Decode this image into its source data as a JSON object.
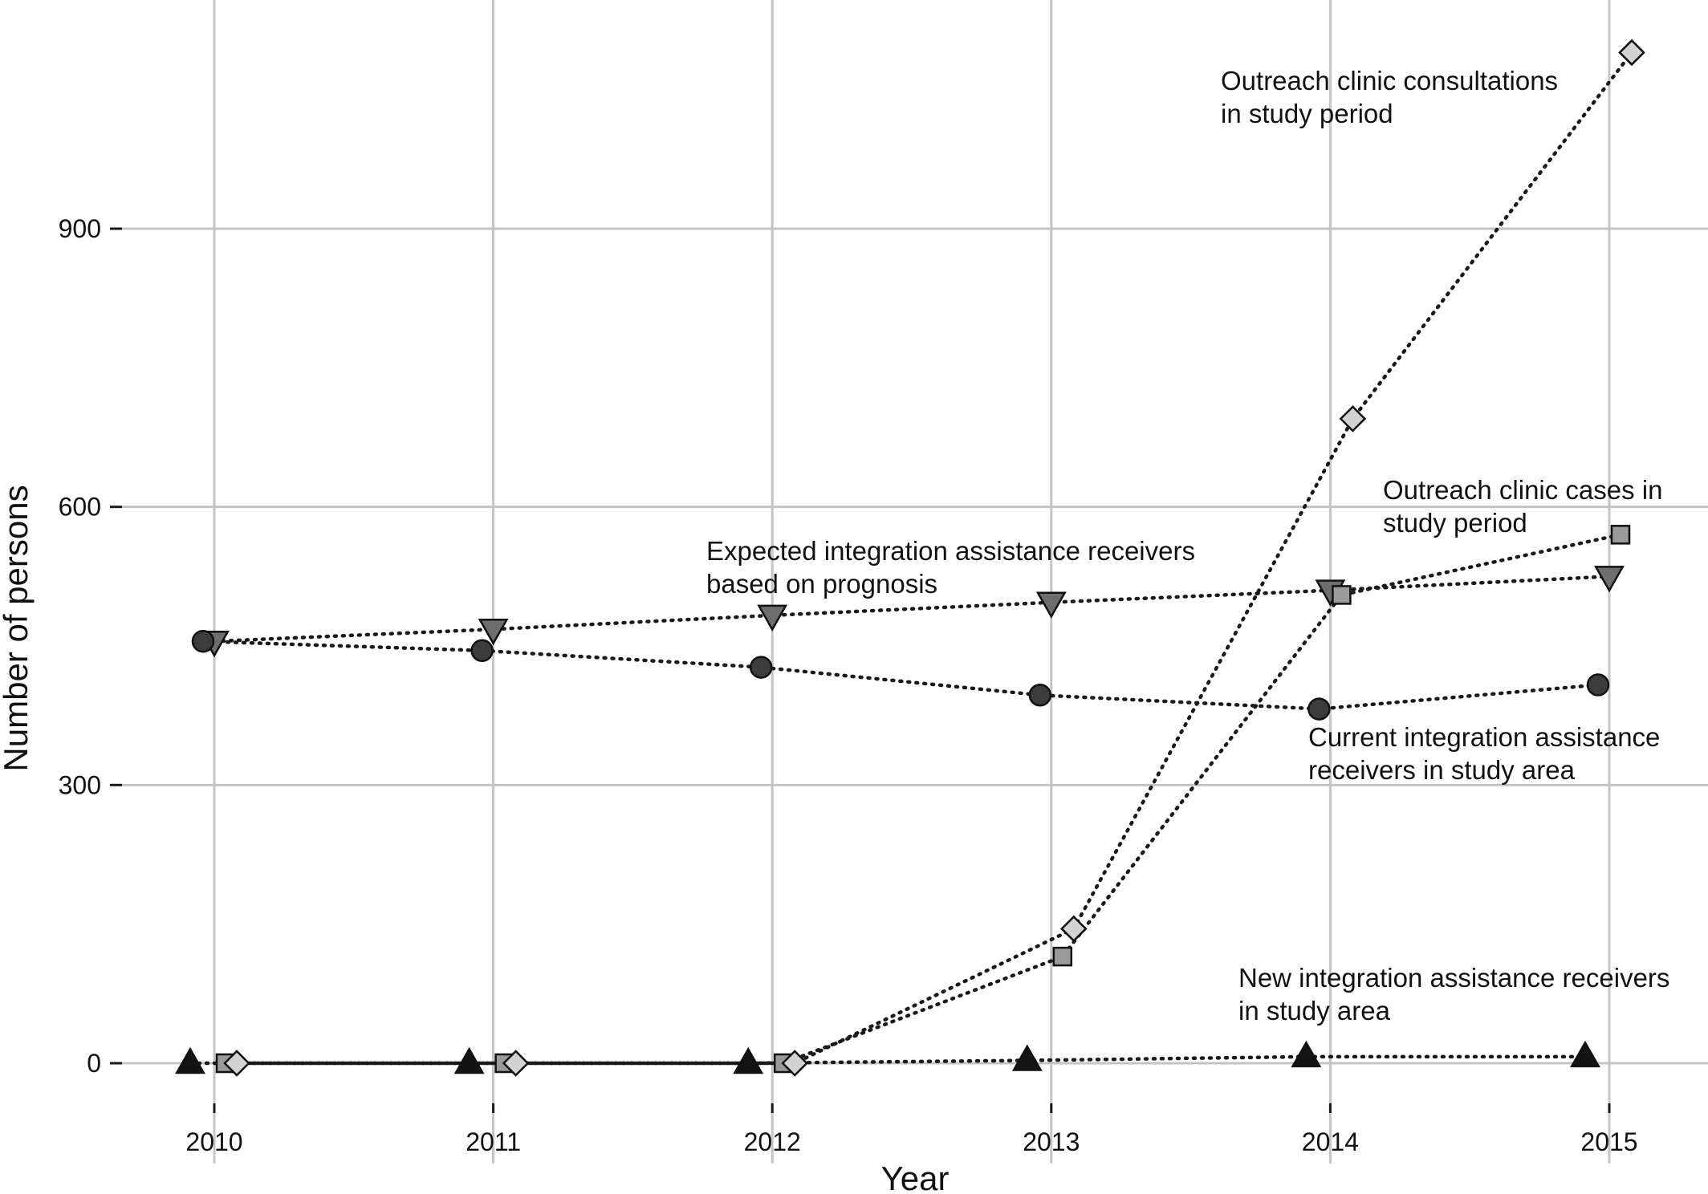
{
  "chart_data": {
    "type": "line",
    "x": [
      2010,
      2011,
      2012,
      2013,
      2014,
      2015
    ],
    "xlabel": "Year",
    "ylabel": "Number of persons",
    "ylim": [
      -100,
      1130
    ],
    "yticks": [
      0,
      300,
      600,
      900
    ],
    "xticks": [
      2010,
      2011,
      2012,
      2013,
      2014,
      2015
    ],
    "grid": true,
    "legend": "none",
    "series": [
      {
        "key": "expected",
        "name": "Expected integration assistance receivers based on prognosis",
        "marker": "triangle-down",
        "color": "#6e6e6e",
        "values": [
          455,
          468,
          483,
          497,
          510,
          525
        ]
      },
      {
        "key": "current",
        "name": "Current integration assistance receivers in study area",
        "marker": "circle",
        "color": "#3c3c3c",
        "values": [
          455,
          445,
          427,
          397,
          382,
          408
        ]
      },
      {
        "key": "new",
        "name": "New integration assistance receivers in study area",
        "marker": "triangle-up",
        "color": "#141414",
        "values": [
          0,
          0,
          0,
          3,
          7,
          7
        ]
      },
      {
        "key": "cases",
        "name": "Outreach clinic cases in study period",
        "marker": "square",
        "color": "#9a9a9a",
        "values": [
          0,
          0,
          0,
          115,
          505,
          570
        ]
      },
      {
        "key": "consultations",
        "name": "Outreach clinic consultations in study period",
        "marker": "diamond",
        "color": "#d2d2d2",
        "values": [
          0,
          0,
          0,
          145,
          695,
          1090
        ]
      }
    ],
    "annotations": [
      {
        "key": "consultations",
        "lines": [
          "Outreach clinic consultations",
          "in study period"
        ]
      },
      {
        "key": "cases",
        "lines": [
          "Outreach clinic cases in",
          "study period"
        ]
      },
      {
        "key": "expected",
        "lines": [
          "Expected integration assistance receivers",
          "based on prognosis"
        ]
      },
      {
        "key": "current",
        "lines": [
          "Current integration assistance",
          "receivers in study area"
        ]
      },
      {
        "key": "new",
        "lines": [
          "New integration assistance receivers",
          "in study area"
        ]
      }
    ]
  }
}
